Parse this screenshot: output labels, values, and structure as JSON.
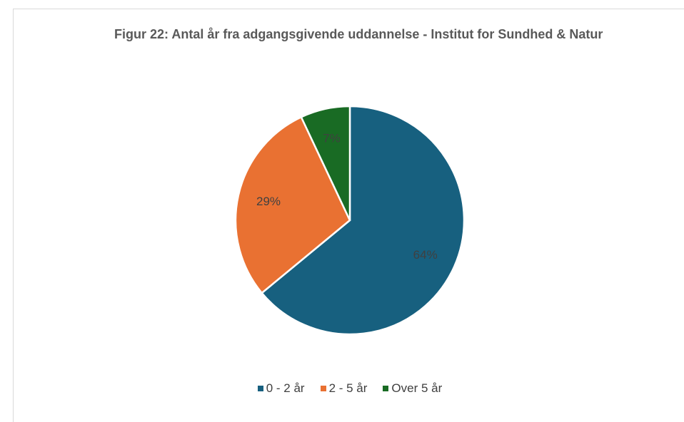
{
  "chart_data": {
    "type": "pie",
    "title": "Figur 22: Antal år fra adgangsgivende uddannelse - Institut for Sundhed & Natur",
    "categories": [
      "0 - 2 år",
      "2 - 5 år",
      "Over 5 år"
    ],
    "values": [
      64,
      29,
      7
    ],
    "value_labels": [
      "64%",
      "29%",
      "7%"
    ],
    "colors": [
      "#17607f",
      "#e97132",
      "#196b24"
    ],
    "legend": "bottom"
  }
}
